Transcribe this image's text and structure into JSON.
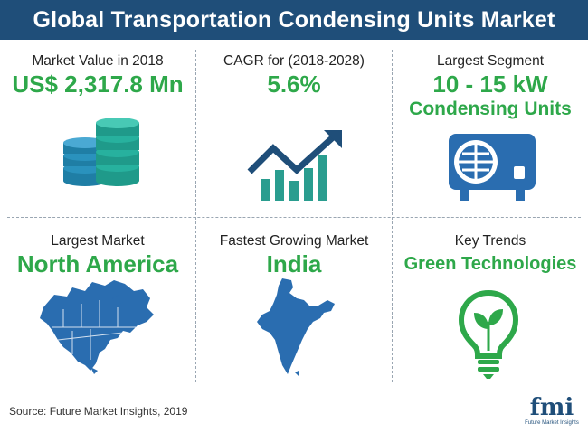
{
  "header": {
    "title": "Global Transportation Condensing Units Market"
  },
  "cells": {
    "market_value": {
      "caption": "Market Value in 2018",
      "value": "US$ 2,317.8 Mn",
      "icon": "coins-stack-icon"
    },
    "cagr": {
      "caption": "CAGR for (2018-2028)",
      "value": "5.6%",
      "icon": "growth-chart-icon"
    },
    "largest_segment": {
      "caption": "Largest Segment",
      "value_line1": "10 - 15 kW",
      "value_line2": "Condensing Units",
      "icon": "condensing-unit-icon"
    },
    "largest_market": {
      "caption": "Largest Market",
      "value": "North America",
      "icon": "north-america-map-icon"
    },
    "fastest_market": {
      "caption": "Fastest Growing Market",
      "value": "India",
      "icon": "india-map-icon"
    },
    "key_trends": {
      "caption": "Key Trends",
      "value": "Green Technologies",
      "icon": "green-bulb-icon"
    }
  },
  "footer": {
    "source": "Source: Future Market Insights, 2019",
    "logo_word": "fmi",
    "logo_tag": "Future Market Insights"
  },
  "colors": {
    "header_bg": "#1f4e79",
    "accent_green": "#2ea84a",
    "icon_teal": "#2a9d8f",
    "icon_blue": "#2a6db0"
  }
}
